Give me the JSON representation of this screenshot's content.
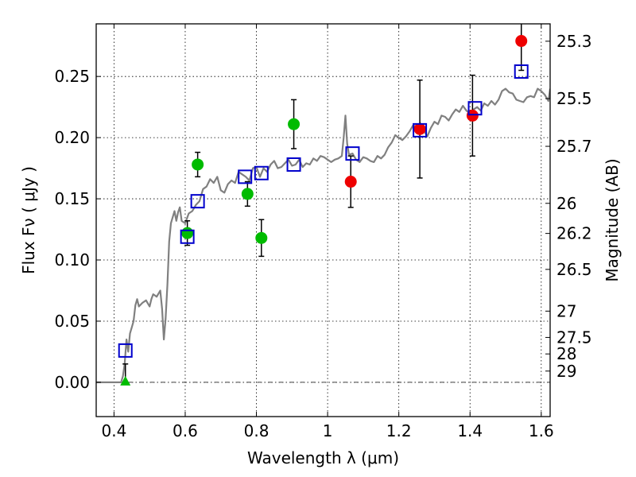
{
  "chart_data": {
    "type": "scatter",
    "title": "",
    "xlabel": "Wavelength  λ (μm)",
    "ylabel": "Flux  Fν  ( μJy )",
    "y2label": "Magnitude (AB)",
    "xlim": [
      0.35,
      1.625
    ],
    "ylim": [
      -0.028,
      0.293
    ],
    "grid": true,
    "x_ticks": [
      0.4,
      0.6,
      0.8,
      1.0,
      1.2,
      1.4,
      1.6
    ],
    "x_tick_labels": [
      "0.4",
      "0.6",
      "0.8",
      "1",
      "1.2",
      "1.4",
      "1.6"
    ],
    "y_ticks": [
      0.0,
      0.05,
      0.1,
      0.15,
      0.2,
      0.25
    ],
    "y_tick_labels": [
      "0.00",
      "0.05",
      "0.10",
      "0.15",
      "0.20",
      "0.25"
    ],
    "right_axis_ticks": [
      {
        "label": "25.3",
        "flux": 0.2788
      },
      {
        "label": "25.5",
        "flux": 0.2319
      },
      {
        "label": "25.7",
        "flux": 0.1929
      },
      {
        "label": "26",
        "flux": 0.1463
      },
      {
        "label": "26.2",
        "flux": 0.1217
      },
      {
        "label": "26.5",
        "flux": 0.0923
      },
      {
        "label": "27",
        "flux": 0.0582
      },
      {
        "label": "27.5",
        "flux": 0.0367
      },
      {
        "label": "28",
        "flux": 0.0232
      },
      {
        "label": "29",
        "flux": 0.0092
      }
    ],
    "colors": {
      "model": "#808080",
      "green": "#00bb00",
      "red": "#ee0000",
      "blue": "#0000cc",
      "errorbar": "#000000"
    },
    "series": [
      {
        "type": "line",
        "color": "#808080",
        "x": [
          0.35,
          0.4,
          0.42,
          0.425,
          0.43,
          0.435,
          0.44,
          0.445,
          0.45,
          0.455,
          0.46,
          0.465,
          0.47,
          0.48,
          0.49,
          0.5,
          0.505,
          0.51,
          0.52,
          0.53,
          0.535,
          0.54,
          0.545,
          0.55,
          0.555,
          0.56,
          0.57,
          0.575,
          0.58,
          0.585,
          0.59,
          0.6,
          0.61,
          0.62,
          0.63,
          0.64,
          0.65,
          0.66,
          0.67,
          0.68,
          0.69,
          0.7,
          0.71,
          0.72,
          0.73,
          0.74,
          0.75,
          0.76,
          0.77,
          0.78,
          0.79,
          0.8,
          0.81,
          0.82,
          0.83,
          0.84,
          0.85,
          0.86,
          0.87,
          0.88,
          0.89,
          0.9,
          0.91,
          0.92,
          0.93,
          0.94,
          0.95,
          0.96,
          0.97,
          0.98,
          0.99,
          1.0,
          1.01,
          1.02,
          1.03,
          1.04,
          1.045,
          1.05,
          1.055,
          1.06,
          1.07,
          1.08,
          1.09,
          1.1,
          1.11,
          1.12,
          1.13,
          1.14,
          1.15,
          1.16,
          1.17,
          1.18,
          1.19,
          1.2,
          1.21,
          1.22,
          1.23,
          1.24,
          1.25,
          1.26,
          1.27,
          1.28,
          1.29,
          1.3,
          1.31,
          1.32,
          1.33,
          1.34,
          1.35,
          1.36,
          1.37,
          1.38,
          1.39,
          1.4,
          1.41,
          1.42,
          1.43,
          1.44,
          1.45,
          1.46,
          1.47,
          1.48,
          1.49,
          1.5,
          1.51,
          1.52,
          1.53,
          1.54,
          1.55,
          1.56,
          1.57,
          1.58,
          1.59,
          1.6,
          1.61,
          1.62,
          1.625
        ],
        "y": [
          0.0,
          0.0,
          0.0,
          0.005,
          0.015,
          0.035,
          0.025,
          0.04,
          0.045,
          0.05,
          0.063,
          0.068,
          0.062,
          0.065,
          0.067,
          0.062,
          0.068,
          0.072,
          0.07,
          0.075,
          0.06,
          0.035,
          0.052,
          0.08,
          0.115,
          0.13,
          0.14,
          0.132,
          0.139,
          0.143,
          0.132,
          0.13,
          0.138,
          0.14,
          0.145,
          0.148,
          0.158,
          0.16,
          0.166,
          0.163,
          0.168,
          0.157,
          0.155,
          0.162,
          0.165,
          0.163,
          0.172,
          0.17,
          0.168,
          0.165,
          0.175,
          0.176,
          0.168,
          0.175,
          0.172,
          0.178,
          0.181,
          0.175,
          0.176,
          0.179,
          0.182,
          0.177,
          0.178,
          0.182,
          0.176,
          0.179,
          0.178,
          0.183,
          0.181,
          0.185,
          0.184,
          0.182,
          0.18,
          0.182,
          0.183,
          0.185,
          0.2,
          0.218,
          0.195,
          0.186,
          0.187,
          0.182,
          0.18,
          0.184,
          0.183,
          0.181,
          0.18,
          0.185,
          0.183,
          0.186,
          0.192,
          0.196,
          0.202,
          0.2,
          0.198,
          0.201,
          0.205,
          0.21,
          0.209,
          0.212,
          0.206,
          0.201,
          0.208,
          0.213,
          0.211,
          0.218,
          0.217,
          0.214,
          0.219,
          0.223,
          0.221,
          0.226,
          0.222,
          0.22,
          0.223,
          0.225,
          0.222,
          0.228,
          0.226,
          0.23,
          0.227,
          0.231,
          0.238,
          0.24,
          0.237,
          0.236,
          0.231,
          0.23,
          0.229,
          0.233,
          0.234,
          0.233,
          0.24,
          0.238,
          0.235,
          0.23,
          0.24
        ]
      },
      {
        "name": "green",
        "type": "scatter",
        "marker": "circle",
        "color": "#00bb00",
        "points": [
          {
            "x": 0.606,
            "y": 0.122,
            "err": 0.01
          },
          {
            "x": 0.635,
            "y": 0.178,
            "err": 0.01
          },
          {
            "x": 0.775,
            "y": 0.154,
            "err": 0.01
          },
          {
            "x": 0.814,
            "y": 0.118,
            "err": 0.015
          },
          {
            "x": 0.905,
            "y": 0.211,
            "err": 0.02
          }
        ]
      },
      {
        "name": "red",
        "type": "scatter",
        "marker": "circle",
        "color": "#ee0000",
        "points": [
          {
            "x": 1.065,
            "y": 0.164,
            "err": 0.021
          },
          {
            "x": 1.259,
            "y": 0.207,
            "err": 0.04
          },
          {
            "x": 1.407,
            "y": 0.218,
            "err": 0.033
          },
          {
            "x": 1.544,
            "y": 0.279,
            "err": 0.024
          }
        ]
      },
      {
        "name": "limit",
        "type": "scatter",
        "marker": "triangle",
        "color": "#00bb00",
        "points": [
          {
            "x": 0.432,
            "y": 0.0,
            "err_up": 0.015
          }
        ]
      },
      {
        "name": "blue",
        "type": "scatter",
        "marker": "square-open",
        "color": "#0000cc",
        "points": [
          {
            "x": 0.432,
            "y": 0.026
          },
          {
            "x": 0.606,
            "y": 0.119
          },
          {
            "x": 0.635,
            "y": 0.148
          },
          {
            "x": 0.768,
            "y": 0.168
          },
          {
            "x": 0.814,
            "y": 0.171
          },
          {
            "x": 0.905,
            "y": 0.178
          },
          {
            "x": 1.07,
            "y": 0.187
          },
          {
            "x": 1.259,
            "y": 0.206
          },
          {
            "x": 1.414,
            "y": 0.224
          },
          {
            "x": 1.544,
            "y": 0.254
          }
        ]
      }
    ]
  }
}
